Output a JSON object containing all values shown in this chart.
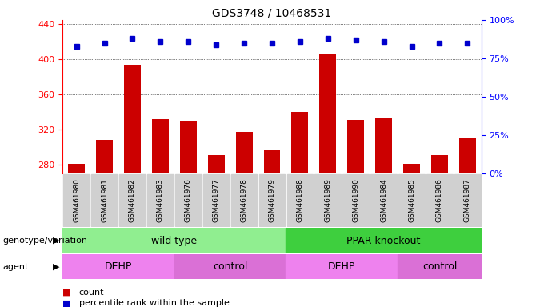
{
  "title": "GDS3748 / 10468531",
  "samples": [
    "GSM461980",
    "GSM461981",
    "GSM461982",
    "GSM461983",
    "GSM461976",
    "GSM461977",
    "GSM461978",
    "GSM461979",
    "GSM461988",
    "GSM461989",
    "GSM461990",
    "GSM461984",
    "GSM461985",
    "GSM461986",
    "GSM461987"
  ],
  "counts": [
    281,
    308,
    394,
    332,
    330,
    291,
    317,
    297,
    340,
    406,
    331,
    333,
    281,
    291,
    310
  ],
  "percentiles": [
    83,
    85,
    88,
    86,
    86,
    84,
    85,
    85,
    86,
    88,
    87,
    86,
    83,
    85,
    85
  ],
  "ylim_left": [
    270,
    445
  ],
  "ylim_right": [
    0,
    100
  ],
  "yticks_left": [
    280,
    320,
    360,
    400,
    440
  ],
  "yticks_right": [
    0,
    25,
    50,
    75,
    100
  ],
  "bar_color": "#cc0000",
  "dot_color": "#0000cc",
  "bar_width": 0.6,
  "genotype_label": "genotype/variation",
  "agent_label": "agent",
  "wild_type_label": "wild type",
  "ppar_label": "PPAR knockout",
  "dehp_label": "DEHP",
  "control_label": "control",
  "wild_type_color": "#90ee90",
  "ppar_color": "#3ecf3e",
  "dehp_color": "#ee82ee",
  "control_color": "#da70d6",
  "legend_count_color": "#cc0000",
  "legend_dot_color": "#0000cc",
  "tick_bg_color": "#d0d0d0",
  "n_samples": 15,
  "wild_type_count": 8,
  "ppar_count": 7,
  "dehp1_count": 4,
  "control1_count": 4,
  "dehp2_count": 4,
  "control2_count": 3
}
